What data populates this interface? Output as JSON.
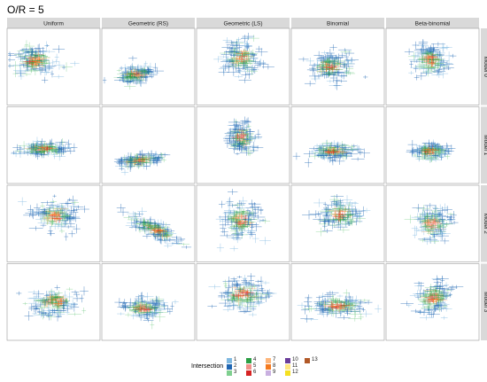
{
  "title": "O/R = 5",
  "chart_data": {
    "type": "scatter",
    "title": "O/R = 5",
    "facet_columns": [
      "Uniform",
      "Geometric (RS)",
      "Geometric (LS)",
      "Binomial",
      "Beta-binomial"
    ],
    "facet_rows": [
      "Model 0",
      "Model 1",
      "Model 2",
      "Model 3"
    ],
    "mark": "cross-shaped error bars around points, colored by intersection count",
    "axes_ticks_shown": false,
    "grid": false,
    "legend_position": "bottom",
    "legend_title": "Intersection",
    "legend": [
      {
        "label": "1",
        "color": "#7fb8e0"
      },
      {
        "label": "2",
        "color": "#1f66b3"
      },
      {
        "label": "3",
        "color": "#7fcf8f"
      },
      {
        "label": "4",
        "color": "#2a9e44"
      },
      {
        "label": "5",
        "color": "#f0918a"
      },
      {
        "label": "6",
        "color": "#d62323"
      },
      {
        "label": "7",
        "color": "#fdb57a"
      },
      {
        "label": "8",
        "color": "#f47a1f"
      },
      {
        "label": "9",
        "color": "#c9b0e0"
      },
      {
        "label": "10",
        "color": "#6a3d9a"
      },
      {
        "label": "11",
        "color": "#ffe680"
      },
      {
        "label": "12",
        "color": "#f5e020"
      },
      {
        "label": "13",
        "color": "#b15928"
      }
    ]
  }
}
